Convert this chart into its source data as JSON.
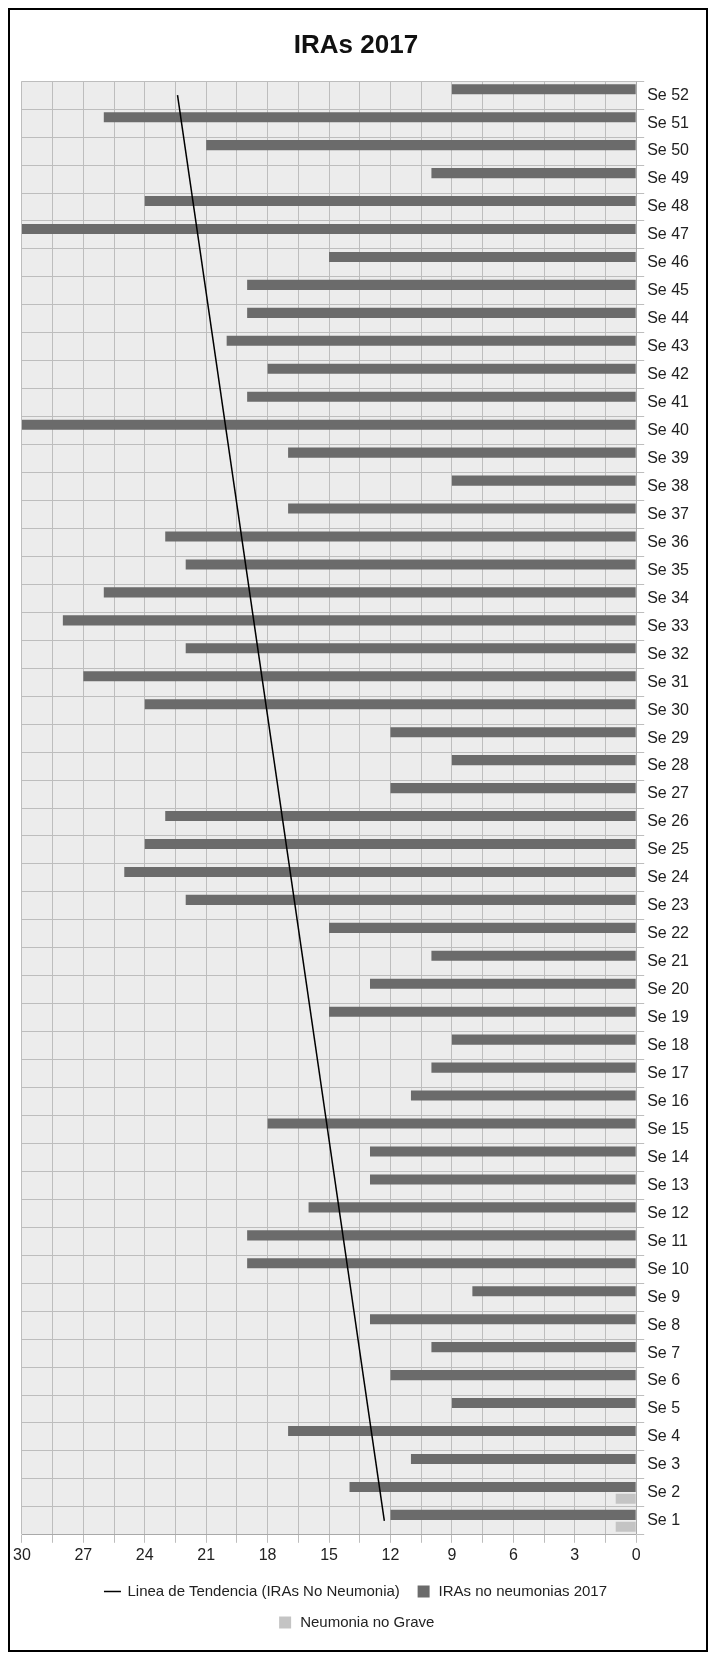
{
  "chart_data": {
    "type": "bar",
    "title": "IRAs 2017",
    "orientation": "horizontal",
    "categories": [
      "Se 52",
      "Se 51",
      "Se 50",
      "Se 49",
      "Se 48",
      "Se 47",
      "Se 46",
      "Se 45",
      "Se 44",
      "Se 43",
      "Se 42",
      "Se 41",
      "Se 40",
      "Se 39",
      "Se 38",
      "Se 37",
      "Se 36",
      "Se 35",
      "Se 34",
      "Se 33",
      "Se 32",
      "Se 31",
      "Se 30",
      "Se 29",
      "Se 28",
      "Se 27",
      "Se 26",
      "Se 25",
      "Se 24",
      "Se 23",
      "Se 22",
      "Se 21",
      "Se 20",
      "Se 19",
      "Se 18",
      "Se 17",
      "Se 16",
      "Se 15",
      "Se 14",
      "Se 13",
      "Se 12",
      "Se 11",
      "Se 10",
      "Se 9",
      "Se 8",
      "Se 7",
      "Se 6",
      "Se 5",
      "Se 4",
      "Se 3",
      "Se 2",
      "Se 1"
    ],
    "series": [
      {
        "name": "IRAs no neumonias 2017",
        "color": "#6b6b6b",
        "values": [
          9,
          26,
          21,
          10,
          24,
          30,
          15,
          19,
          19,
          20,
          18,
          19,
          30,
          17,
          9,
          17,
          23,
          22,
          26,
          28,
          22,
          27,
          24,
          12,
          9,
          12,
          23,
          24,
          25,
          22,
          15,
          10,
          13,
          15,
          9,
          10,
          11,
          18,
          13,
          13,
          16,
          19,
          19,
          8,
          13,
          10,
          12,
          9,
          17,
          11,
          14,
          12
        ]
      },
      {
        "name": "Neumonia no Grave",
        "color": "#c4c4c4",
        "values": [
          0,
          0,
          0,
          0,
          0,
          0,
          0,
          0,
          0,
          0,
          0,
          0,
          0,
          0,
          0,
          0,
          0,
          0,
          0,
          0,
          0,
          0,
          0,
          0,
          0,
          0,
          0,
          0,
          0,
          0,
          0,
          0,
          0,
          0,
          0,
          0,
          0,
          0,
          0,
          0,
          0,
          0,
          0,
          0,
          0,
          0,
          0,
          0,
          0,
          0,
          1,
          1
        ]
      },
      {
        "name": "Linea de Tendencia (IRAs No Neumonia)",
        "type": "line",
        "color": "#000000",
        "x": [
          "Se 1",
          "Se 52"
        ],
        "values": [
          12.3,
          22.4
        ]
      }
    ],
    "xlim": [
      30,
      0
    ],
    "xticks": [
      30,
      {
        "value": 28.5,
        "label": null
      },
      27,
      {
        "value": 25.5,
        "label": null
      },
      24,
      {
        "value": 22.5,
        "label": null
      },
      21,
      {
        "value": 19.5,
        "label": null
      },
      18,
      {
        "value": 16.5,
        "label": null
      },
      15,
      {
        "value": 13.5,
        "label": null
      },
      12,
      {
        "value": 10.5,
        "label": null
      },
      9,
      {
        "value": 7.5,
        "label": null
      },
      6,
      {
        "value": 4.5,
        "label": null
      },
      3,
      {
        "value": 1.5,
        "label": null
      },
      0
    ],
    "grid": true,
    "legend": "bottom"
  }
}
